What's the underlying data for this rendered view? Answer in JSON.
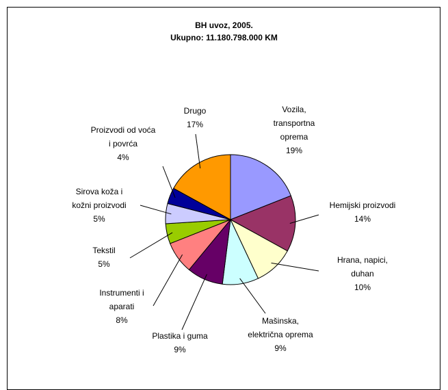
{
  "chart_data": {
    "type": "pie",
    "title": "BH uvoz, 2005.",
    "subtitle": "Ukupno: 11.180.798.000 KM",
    "categories": [
      "Vozila,\ntransportna\noprema",
      "Hemijski proizvodi",
      "Hrana, napici,\nduhan",
      "Mašinska,\nelektrična oprema",
      "Plastika i guma",
      "Instrumenti i\naparati",
      "Tekstil",
      "Sirova koža i\nkožni proizvodi",
      "Proizvodi od voća\ni povrća",
      "Drugo"
    ],
    "values": [
      19,
      14,
      10,
      9,
      9,
      8,
      5,
      5,
      4,
      17
    ],
    "value_labels": [
      "19%",
      "14%",
      "10%",
      "9%",
      "9%",
      "8%",
      "5%",
      "5%",
      "4%",
      "17%"
    ],
    "colors": [
      "#9999FF",
      "#993366",
      "#FFFFCC",
      "#CCFFFF",
      "#660066",
      "#FF8080",
      "#99CC00",
      "#CCCCFF",
      "#000099",
      "#FF9900"
    ]
  }
}
